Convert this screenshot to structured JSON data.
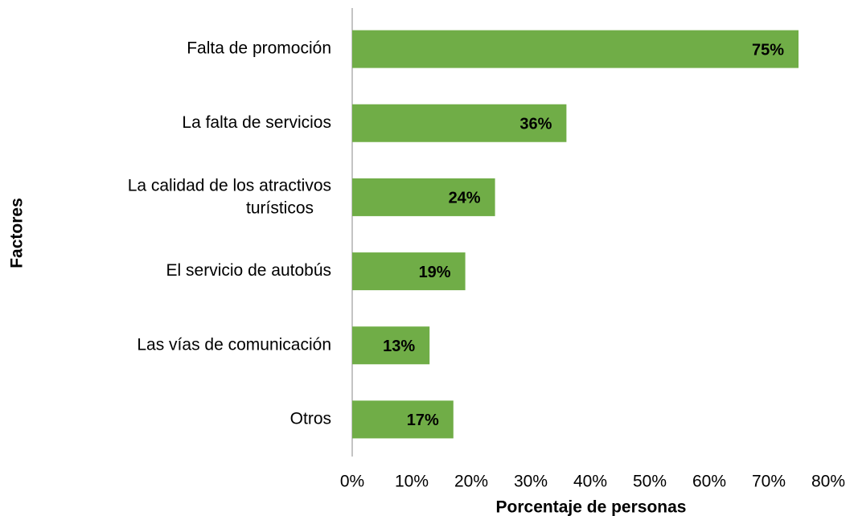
{
  "chart_data": {
    "type": "bar",
    "orientation": "horizontal",
    "x_label": "Porcentaje de personas",
    "y_label": "Factores",
    "categories": [
      "Falta de promoción",
      "La falta de servicios",
      "La calidad de los atractivos turísticos",
      "El servicio de autobús",
      "Las vías de comunicación",
      "Otros"
    ],
    "values": [
      75,
      36,
      24,
      19,
      13,
      17
    ],
    "value_labels": [
      "75%",
      "36%",
      "24%",
      "19%",
      "13%",
      "17%"
    ],
    "color": "#70ad47",
    "xlim": [
      0,
      80
    ],
    "xticks": [
      {
        "value": 0,
        "label": "0%"
      },
      {
        "value": 10,
        "label": "10%"
      },
      {
        "value": 20,
        "label": "20%"
      },
      {
        "value": 30,
        "label": "30%"
      },
      {
        "value": 40,
        "label": "40%"
      },
      {
        "value": 50,
        "label": "50%"
      },
      {
        "value": 60,
        "label": "60%"
      },
      {
        "value": 70,
        "label": "70%"
      },
      {
        "value": 80,
        "label": "80%"
      }
    ]
  }
}
